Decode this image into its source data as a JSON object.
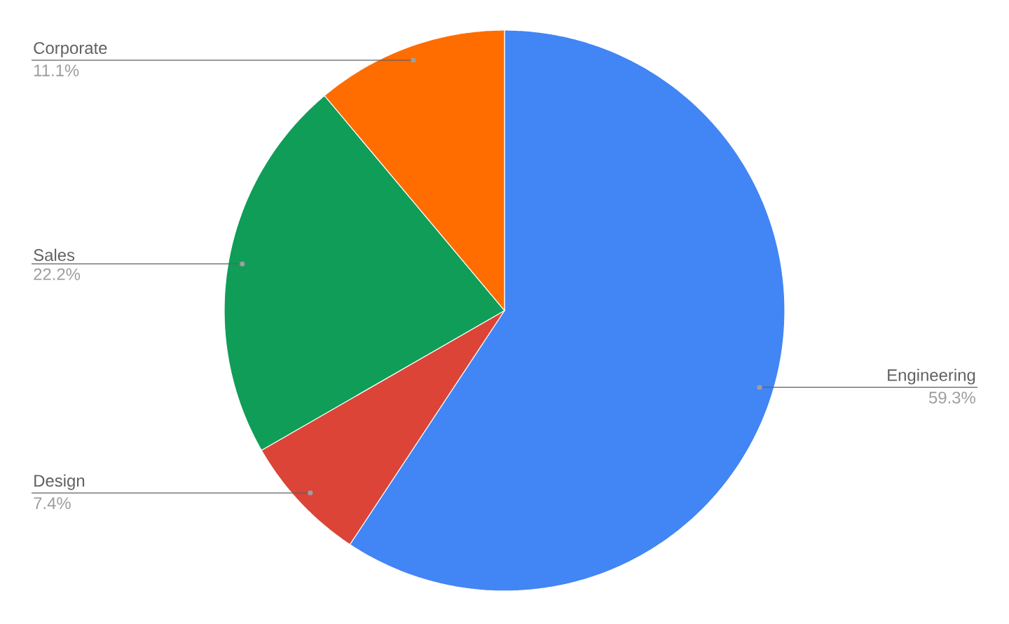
{
  "chart_data": {
    "type": "pie",
    "categories": [
      "Engineering",
      "Design",
      "Sales",
      "Corporate"
    ],
    "values": [
      59.3,
      7.4,
      22.2,
      11.1
    ],
    "value_labels": [
      "59.3%",
      "7.4%",
      "22.2%",
      "11.1%"
    ],
    "colors": [
      "#4285f4",
      "#db4437",
      "#0f9d58",
      "#ff6d00"
    ]
  }
}
